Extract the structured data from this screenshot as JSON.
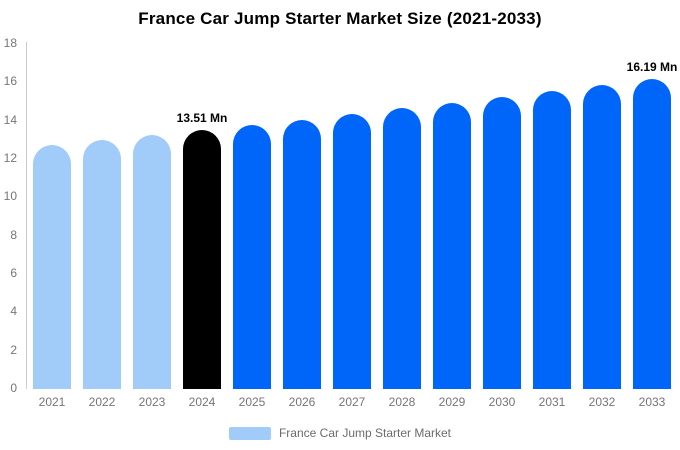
{
  "title": "France Car Jump Starter Market Size (2021-2033)",
  "legend": {
    "label": "France Car Jump Starter Market",
    "swatch_color": "#A1CCFA"
  },
  "colors": {
    "historical_bar": "#A1CCFA",
    "highlight_bar": "#000000",
    "forecast_bar": "#0066FA",
    "axis_line": "#CCCCCC",
    "tick_text": "#757575",
    "annotation_text": "#000000",
    "legend_text": "#6B6B6B",
    "background": "#FFFFFF"
  },
  "chart_data": {
    "type": "bar",
    "title": "France Car Jump Starter Market Size (2021-2033)",
    "unit": "Mn",
    "categories": [
      "2021",
      "2022",
      "2023",
      "2024",
      "2025",
      "2026",
      "2027",
      "2028",
      "2029",
      "2030",
      "2031",
      "2032",
      "2033"
    ],
    "values": [
      12.72,
      12.98,
      13.24,
      13.51,
      13.78,
      14.06,
      14.35,
      14.64,
      14.94,
      15.24,
      15.55,
      15.87,
      16.19
    ],
    "bar_colors": [
      "#A1CCFA",
      "#A1CCFA",
      "#A1CCFA",
      "#000000",
      "#0066FA",
      "#0066FA",
      "#0066FA",
      "#0066FA",
      "#0066FA",
      "#0066FA",
      "#0066FA",
      "#0066FA",
      "#0066FA"
    ],
    "annotations": [
      {
        "index": 3,
        "text": "13.51 Mn"
      },
      {
        "index": 12,
        "text": "16.19 Mn"
      }
    ],
    "xlabel": "",
    "ylabel": "",
    "ylim": [
      0,
      18
    ],
    "yticks": [
      0,
      2,
      4,
      6,
      8,
      10,
      12,
      14,
      16,
      18
    ],
    "grid": false,
    "legend_position": "bottom",
    "legend_entries": [
      "France Car Jump Starter Market"
    ]
  }
}
